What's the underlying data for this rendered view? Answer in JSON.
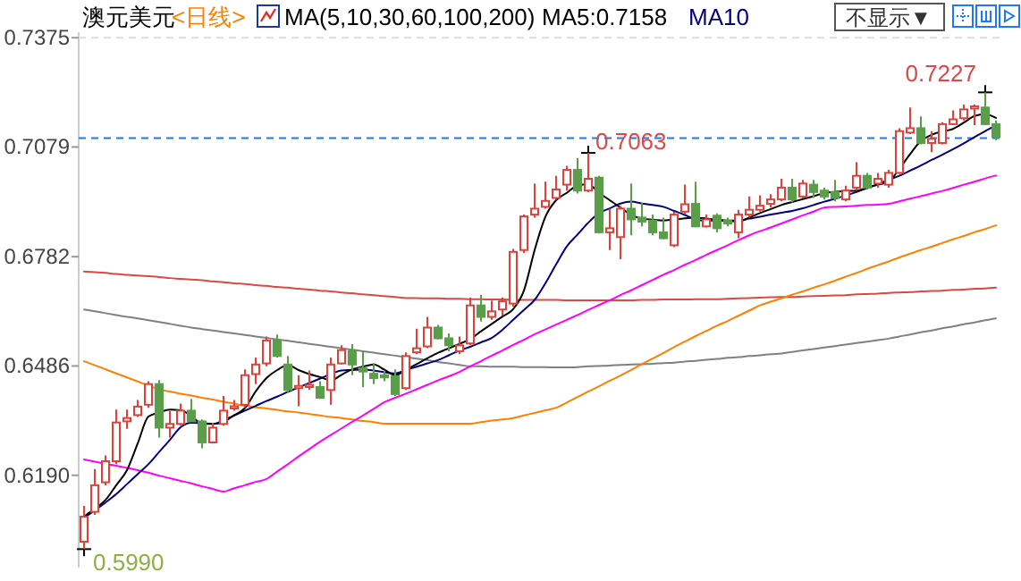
{
  "chart_data": {
    "type": "candlestick",
    "title": "澳元美元",
    "subtitle": "<日线>",
    "categories": [
      null,
      null,
      null,
      null,
      null,
      null,
      null,
      null,
      null,
      null,
      null,
      null,
      null,
      null,
      null,
      null,
      null,
      null,
      null,
      null,
      null,
      null,
      null,
      null,
      null,
      null,
      null,
      null,
      null,
      null,
      null,
      null,
      null,
      null,
      null,
      null,
      null,
      null,
      null,
      null,
      null,
      null,
      null,
      null,
      null,
      null,
      null,
      null,
      null,
      null,
      null,
      null,
      null,
      null,
      null,
      null,
      null,
      null,
      null,
      null,
      null,
      null,
      null,
      null,
      null,
      null,
      null,
      null,
      null,
      null,
      null,
      null,
      null,
      null,
      null,
      null,
      null,
      null,
      null,
      null,
      null,
      null,
      null,
      null,
      null,
      null
    ],
    "ohlc": [
      [
        0.601,
        0.6107,
        0.599,
        0.6078
      ],
      [
        0.6091,
        0.6207,
        0.6083,
        0.6163
      ],
      [
        0.6171,
        0.6244,
        0.6163,
        0.6228
      ],
      [
        0.6228,
        0.6368,
        0.622,
        0.6333
      ],
      [
        0.6336,
        0.6368,
        0.6316,
        0.6345
      ],
      [
        0.6353,
        0.6394,
        0.6348,
        0.6376
      ],
      [
        0.6381,
        0.6445,
        0.6373,
        0.6437
      ],
      [
        0.6437,
        0.6448,
        0.6292,
        0.6319
      ],
      [
        0.6319,
        0.6364,
        0.6292,
        0.6329
      ],
      [
        0.6329,
        0.6384,
        0.6324,
        0.6365
      ],
      [
        0.6365,
        0.6397,
        0.6336,
        0.6336
      ],
      [
        0.6336,
        0.6341,
        0.6263,
        0.6279
      ],
      [
        0.6279,
        0.6332,
        0.6276,
        0.6319
      ],
      [
        0.6329,
        0.6405,
        0.6324,
        0.6365
      ],
      [
        0.6371,
        0.6394,
        0.6365,
        0.6377
      ],
      [
        0.6381,
        0.6477,
        0.6373,
        0.6461
      ],
      [
        0.6464,
        0.6509,
        0.6437,
        0.649
      ],
      [
        0.6493,
        0.6566,
        0.6485,
        0.6555
      ],
      [
        0.6555,
        0.6571,
        0.6509,
        0.6513
      ],
      [
        0.649,
        0.6513,
        0.6413,
        0.6421
      ],
      [
        0.6426,
        0.6461,
        0.6377,
        0.6432
      ],
      [
        0.6429,
        0.6474,
        0.6421,
        0.6435
      ],
      [
        0.6429,
        0.6445,
        0.6397,
        0.64
      ],
      [
        0.6421,
        0.6509,
        0.6381,
        0.649
      ],
      [
        0.6493,
        0.6542,
        0.649,
        0.6529
      ],
      [
        0.6526,
        0.6545,
        0.6461,
        0.649
      ],
      [
        0.648,
        0.6526,
        0.6429,
        0.6471
      ],
      [
        0.6465,
        0.6494,
        0.6437,
        0.6453
      ],
      [
        0.6461,
        0.6474,
        0.6445,
        0.6455
      ],
      [
        0.6458,
        0.6477,
        0.6405,
        0.641
      ],
      [
        0.6426,
        0.6523,
        0.6421,
        0.6513
      ],
      [
        0.6523,
        0.6587,
        0.6518,
        0.6534
      ],
      [
        0.6539,
        0.6619,
        0.6534,
        0.659
      ],
      [
        0.659,
        0.6597,
        0.6558,
        0.6561
      ],
      [
        0.6561,
        0.6574,
        0.6526,
        0.6542
      ],
      [
        0.6526,
        0.6566,
        0.6518,
        0.6542
      ],
      [
        0.6547,
        0.6671,
        0.6542,
        0.665
      ],
      [
        0.665,
        0.6679,
        0.6606,
        0.6619
      ],
      [
        0.6619,
        0.6663,
        0.6611,
        0.6634
      ],
      [
        0.6639,
        0.6671,
        0.6622,
        0.6661
      ],
      [
        0.6655,
        0.6803,
        0.6647,
        0.6795
      ],
      [
        0.68,
        0.6896,
        0.6792,
        0.6891
      ],
      [
        0.6896,
        0.698,
        0.6888,
        0.6912
      ],
      [
        0.6917,
        0.6985,
        0.6912,
        0.6933
      ],
      [
        0.6941,
        0.7001,
        0.6936,
        0.6964
      ],
      [
        0.6977,
        0.7028,
        0.6961,
        0.7017
      ],
      [
        0.7017,
        0.7049,
        0.6953,
        0.6961
      ],
      [
        0.6961,
        0.7063,
        0.6957,
        0.6993
      ],
      [
        0.6996,
        0.7001,
        0.6845,
        0.6848
      ],
      [
        0.6848,
        0.6912,
        0.68,
        0.6859
      ],
      [
        0.6835,
        0.692,
        0.6775,
        0.6912
      ],
      [
        0.6912,
        0.698,
        0.684,
        0.6883
      ],
      [
        0.6888,
        0.6928,
        0.6864,
        0.6877
      ],
      [
        0.688,
        0.6896,
        0.684,
        0.6848
      ],
      [
        0.6848,
        0.6888,
        0.6829,
        0.6832
      ],
      [
        0.6813,
        0.6904,
        0.6808,
        0.6896
      ],
      [
        0.6904,
        0.6977,
        0.6896,
        0.6924
      ],
      [
        0.6925,
        0.6985,
        0.6864,
        0.6864
      ],
      [
        0.6864,
        0.6896,
        0.6861,
        0.6883
      ],
      [
        0.6893,
        0.6899,
        0.6848,
        0.6859
      ],
      [
        0.688,
        0.6888,
        0.6864,
        0.6872
      ],
      [
        0.6848,
        0.6909,
        0.6832,
        0.6896
      ],
      [
        0.6896,
        0.6945,
        0.6888,
        0.6909
      ],
      [
        0.6909,
        0.6948,
        0.6904,
        0.692
      ],
      [
        0.6925,
        0.6951,
        0.6915,
        0.6937
      ],
      [
        0.6937,
        0.6993,
        0.6932,
        0.6969
      ],
      [
        0.6969,
        0.6993,
        0.6929,
        0.6937
      ],
      [
        0.6945,
        0.699,
        0.694,
        0.698
      ],
      [
        0.6977,
        0.699,
        0.6941,
        0.6957
      ],
      [
        0.6961,
        0.6969,
        0.6937,
        0.6945
      ],
      [
        0.6957,
        0.699,
        0.6932,
        0.6941
      ],
      [
        0.6937,
        0.6974,
        0.6932,
        0.6961
      ],
      [
        0.6969,
        0.7038,
        0.6961,
        0.7001
      ],
      [
        0.7001,
        0.7009,
        0.6964,
        0.6969
      ],
      [
        0.698,
        0.7009,
        0.6969,
        0.6993
      ],
      [
        0.6977,
        0.7017,
        0.6969,
        0.7009
      ],
      [
        0.7009,
        0.713,
        0.7006,
        0.7122
      ],
      [
        0.7118,
        0.7186,
        0.7114,
        0.713
      ],
      [
        0.713,
        0.7162,
        0.7086,
        0.709
      ],
      [
        0.709,
        0.7122,
        0.7065,
        0.7101
      ],
      [
        0.709,
        0.7146,
        0.7086,
        0.7141
      ],
      [
        0.7141,
        0.7178,
        0.7138,
        0.7154
      ],
      [
        0.7157,
        0.7194,
        0.7151,
        0.7181
      ],
      [
        0.7183,
        0.7194,
        0.7138,
        0.7189
      ],
      [
        0.7186,
        0.7227,
        0.7138,
        0.7141
      ],
      [
        0.7141,
        0.7151,
        0.7098,
        0.7106
      ]
    ],
    "colors": [
      "#e0403a",
      "#e0403a",
      "#e0403a",
      "#e0403a",
      "#e0403a",
      "#e0403a",
      "#e0403a",
      "#5a9e4a",
      "#e0403a",
      "#e0403a",
      "#5a9e4a",
      "#5a9e4a",
      "#e0403a",
      "#e0403a",
      "#e0403a",
      "#e0403a",
      "#e0403a",
      "#e0403a",
      "#5a9e4a",
      "#5a9e4a",
      "#e0403a",
      "#e0403a",
      "#5a9e4a",
      "#e0403a",
      "#e0403a",
      "#5a9e4a",
      "#5a9e4a",
      "#5a9e4a",
      "#5a9e4a",
      "#5a9e4a",
      "#e0403a",
      "#e0403a",
      "#e0403a",
      "#5a9e4a",
      "#5a9e4a",
      "#e0403a",
      "#e0403a",
      "#5a9e4a",
      "#e0403a",
      "#e0403a",
      "#e0403a",
      "#e0403a",
      "#e0403a",
      "#e0403a",
      "#e0403a",
      "#e0403a",
      "#5a9e4a",
      "#e0403a",
      "#5a9e4a",
      "#e0403a",
      "#e0403a",
      "#5a9e4a",
      "#5a9e4a",
      "#5a9e4a",
      "#5a9e4a",
      "#e0403a",
      "#e0403a",
      "#5a9e4a",
      "#e0403a",
      "#5a9e4a",
      "#5a9e4a",
      "#e0403a",
      "#e0403a",
      "#e0403a",
      "#e0403a",
      "#e0403a",
      "#5a9e4a",
      "#e0403a",
      "#5a9e4a",
      "#5a9e4a",
      "#5a9e4a",
      "#e0403a",
      "#e0403a",
      "#5a9e4a",
      "#e0403a",
      "#e0403a",
      "#e0403a",
      "#e0403a",
      "#5a9e4a",
      "#e0403a",
      "#e0403a",
      "#e0403a",
      "#e0403a",
      "#e0403a",
      "#5a9e4a",
      "#5a9e4a"
    ],
    "series": [
      {
        "type": "line",
        "color": "#d94a42",
        "values": [
          0.6742,
          0.674,
          0.6738,
          0.6735,
          0.6733,
          0.6731,
          0.6729,
          0.6727,
          0.6724,
          0.6722,
          0.672,
          0.6718,
          0.6715,
          0.6713,
          0.671,
          0.6708,
          0.6705,
          0.6703,
          0.67,
          0.6698,
          0.6695,
          0.6693,
          0.669,
          0.6688,
          0.6685,
          0.6683,
          0.668,
          0.6678,
          0.6675,
          0.6673,
          0.667,
          0.667,
          0.6669,
          0.6669,
          0.6668,
          0.6668,
          0.6667,
          0.6667,
          0.6666,
          0.6666,
          0.6665,
          0.6665,
          0.6665,
          0.6665,
          0.6665,
          0.6664,
          0.6664,
          0.6664,
          0.6664,
          0.6664,
          0.6664,
          0.6664,
          0.6665,
          0.6665,
          0.6666,
          0.6666,
          0.6666,
          0.6667,
          0.6667,
          0.6667,
          0.6668,
          0.6669,
          0.667,
          0.6671,
          0.6672,
          0.6673,
          0.6673,
          0.6674,
          0.6675,
          0.6676,
          0.6677,
          0.6678,
          0.668,
          0.6681,
          0.6682,
          0.6684,
          0.6685,
          0.6686,
          0.6688,
          0.6689,
          0.669,
          0.6692,
          0.6693,
          0.6695,
          0.6696,
          0.6698
        ]
      },
      {
        "type": "line",
        "color": "#808080",
        "values": [
          0.6639,
          0.6634,
          0.6629,
          0.6624,
          0.6619,
          0.6615,
          0.661,
          0.6605,
          0.66,
          0.6595,
          0.659,
          0.6586,
          0.6582,
          0.6578,
          0.6574,
          0.657,
          0.6566,
          0.6562,
          0.6558,
          0.6554,
          0.655,
          0.6546,
          0.6542,
          0.6538,
          0.6534,
          0.653,
          0.6526,
          0.6522,
          0.6518,
          0.6514,
          0.651,
          0.6506,
          0.6502,
          0.6497,
          0.6493,
          0.6489,
          0.6485,
          0.6485,
          0.6484,
          0.6484,
          0.6484,
          0.6483,
          0.6483,
          0.6483,
          0.6482,
          0.6482,
          0.6483,
          0.6485,
          0.6486,
          0.6487,
          0.6489,
          0.649,
          0.6491,
          0.6492,
          0.6494,
          0.6495,
          0.6498,
          0.65,
          0.6503,
          0.6505,
          0.6508,
          0.651,
          0.6513,
          0.6515,
          0.6518,
          0.652,
          0.6524,
          0.6528,
          0.6532,
          0.6536,
          0.654,
          0.6544,
          0.6548,
          0.6552,
          0.6556,
          0.656,
          0.6566,
          0.6571,
          0.6577,
          0.6582,
          0.6588,
          0.6593,
          0.6599,
          0.6604,
          0.661,
          0.6615
        ]
      },
      {
        "type": "line",
        "color": "#ff8000",
        "values": [
          0.6499,
          0.6488,
          0.6477,
          0.6466,
          0.6455,
          0.6444,
          0.6433,
          0.6422,
          0.6417,
          0.6411,
          0.6406,
          0.64,
          0.6395,
          0.6389,
          0.6384,
          0.6378,
          0.6374,
          0.6371,
          0.6367,
          0.6363,
          0.636,
          0.6356,
          0.6352,
          0.6348,
          0.6345,
          0.6341,
          0.6337,
          0.6334,
          0.633,
          0.633,
          0.633,
          0.633,
          0.633,
          0.633,
          0.633,
          0.633,
          0.633,
          0.6334,
          0.6338,
          0.6341,
          0.6345,
          0.6352,
          0.6359,
          0.6366,
          0.6373,
          0.6387,
          0.6402,
          0.6417,
          0.6431,
          0.6446,
          0.646,
          0.6475,
          0.6491,
          0.6506,
          0.6521,
          0.6537,
          0.6552,
          0.6567,
          0.6581,
          0.6595,
          0.6608,
          0.6622,
          0.6636,
          0.665,
          0.666,
          0.6669,
          0.6679,
          0.6688,
          0.6698,
          0.6707,
          0.6717,
          0.6728,
          0.6738,
          0.6749,
          0.6759,
          0.6769,
          0.678,
          0.679,
          0.68,
          0.6809,
          0.6819,
          0.6829,
          0.6838,
          0.6848,
          0.6857,
          0.6867
        ]
      },
      {
        "type": "line",
        "color": "#ff00ff",
        "values": [
          0.6233,
          0.6227,
          0.6221,
          0.6216,
          0.621,
          0.6204,
          0.6197,
          0.6189,
          0.6182,
          0.6175,
          0.6168,
          0.616,
          0.6153,
          0.6146,
          0.6155,
          0.6163,
          0.6172,
          0.618,
          0.62,
          0.622,
          0.6241,
          0.6261,
          0.6281,
          0.6299,
          0.6317,
          0.6335,
          0.6352,
          0.637,
          0.6388,
          0.64,
          0.6411,
          0.6423,
          0.6435,
          0.6447,
          0.6458,
          0.647,
          0.6485,
          0.6499,
          0.6514,
          0.6528,
          0.6543,
          0.6557,
          0.6572,
          0.6585,
          0.6598,
          0.6611,
          0.6624,
          0.6638,
          0.6651,
          0.6664,
          0.6678,
          0.6691,
          0.6705,
          0.6719,
          0.6733,
          0.6746,
          0.676,
          0.6773,
          0.6787,
          0.68,
          0.6813,
          0.6827,
          0.684,
          0.6851,
          0.6861,
          0.6872,
          0.6883,
          0.6894,
          0.6904,
          0.6915,
          0.6917,
          0.6918,
          0.692,
          0.6922,
          0.6923,
          0.6925,
          0.6932,
          0.6939,
          0.6946,
          0.6953,
          0.696,
          0.6968,
          0.6977,
          0.6985,
          0.6994,
          0.7002
        ]
      },
      {
        "name": "MA10",
        "type": "line",
        "color": "#000080",
        "values": [
          0.6074,
          0.6095,
          0.6116,
          0.6139,
          0.6166,
          0.6193,
          0.622,
          0.6253,
          0.6286,
          0.632,
          0.6332,
          0.6331,
          0.6329,
          0.6339,
          0.6352,
          0.6365,
          0.6378,
          0.6391,
          0.6403,
          0.6416,
          0.6428,
          0.644,
          0.6452,
          0.6464,
          0.6474,
          0.6475,
          0.6476,
          0.6474,
          0.6469,
          0.6466,
          0.6475,
          0.6484,
          0.6493,
          0.6502,
          0.6515,
          0.6528,
          0.6538,
          0.655,
          0.6562,
          0.6584,
          0.6611,
          0.6638,
          0.6665,
          0.671,
          0.6761,
          0.681,
          0.6842,
          0.6874,
          0.69,
          0.6913,
          0.6926,
          0.6931,
          0.6926,
          0.6922,
          0.6917,
          0.6906,
          0.6895,
          0.6883,
          0.688,
          0.688,
          0.688,
          0.688,
          0.6885,
          0.689,
          0.6896,
          0.6901,
          0.6906,
          0.6913,
          0.6922,
          0.6931,
          0.6939,
          0.6948,
          0.6957,
          0.6968,
          0.6979,
          0.699,
          0.7001,
          0.7015,
          0.7029,
          0.7044,
          0.7058,
          0.7073,
          0.7089,
          0.7106,
          0.7122,
          0.7138
        ]
      },
      {
        "name": "MA5:0.7158",
        "type": "line",
        "color": "#000000",
        "values": [
          0.6078,
          0.61,
          0.6123,
          0.6163,
          0.6204,
          0.6276,
          0.6349,
          0.636,
          0.6368,
          0.6366,
          0.6351,
          0.6329,
          0.6329,
          0.6335,
          0.6353,
          0.6372,
          0.6417,
          0.6453,
          0.6475,
          0.6488,
          0.6475,
          0.6464,
          0.6456,
          0.6447,
          0.6462,
          0.6477,
          0.6484,
          0.649,
          0.6476,
          0.6461,
          0.6476,
          0.6491,
          0.6507,
          0.6522,
          0.6534,
          0.6546,
          0.6559,
          0.658,
          0.66,
          0.662,
          0.664,
          0.669,
          0.68,
          0.689,
          0.6935,
          0.6955,
          0.6975,
          0.6978,
          0.6955,
          0.6935,
          0.6915,
          0.6895,
          0.6885,
          0.6882,
          0.688,
          0.6882,
          0.6886,
          0.6888,
          0.6885,
          0.6882,
          0.6879,
          0.6877,
          0.6888,
          0.69,
          0.6911,
          0.6922,
          0.693,
          0.6938,
          0.6946,
          0.6954,
          0.6958,
          0.696,
          0.6961,
          0.6969,
          0.6977,
          0.6985,
          0.702,
          0.706,
          0.7095,
          0.7112,
          0.7121,
          0.7128,
          0.7145,
          0.7163,
          0.7168,
          0.7158
        ]
      }
    ],
    "ylim": [
      0.594,
      0.739
    ],
    "yticks": [
      {
        "value": 0.619,
        "label": "0.6190"
      },
      0.6486,
      0.6782,
      0.7079,
      0.7375
    ],
    "legend": "top",
    "ref_lines": [
      {
        "axis": "y",
        "value": 0.7103,
        "color": "#1e78ff",
        "line_style": "dashed"
      },
      {
        "axis": "y",
        "value": 0.7375,
        "color": "#dddddd",
        "line_style": "dashed"
      }
    ],
    "annotations": [
      "MA(5,10,30,60,100,200)",
      "不显示▼",
      "0.7227",
      "0.7063",
      "0.5990"
    ]
  }
}
